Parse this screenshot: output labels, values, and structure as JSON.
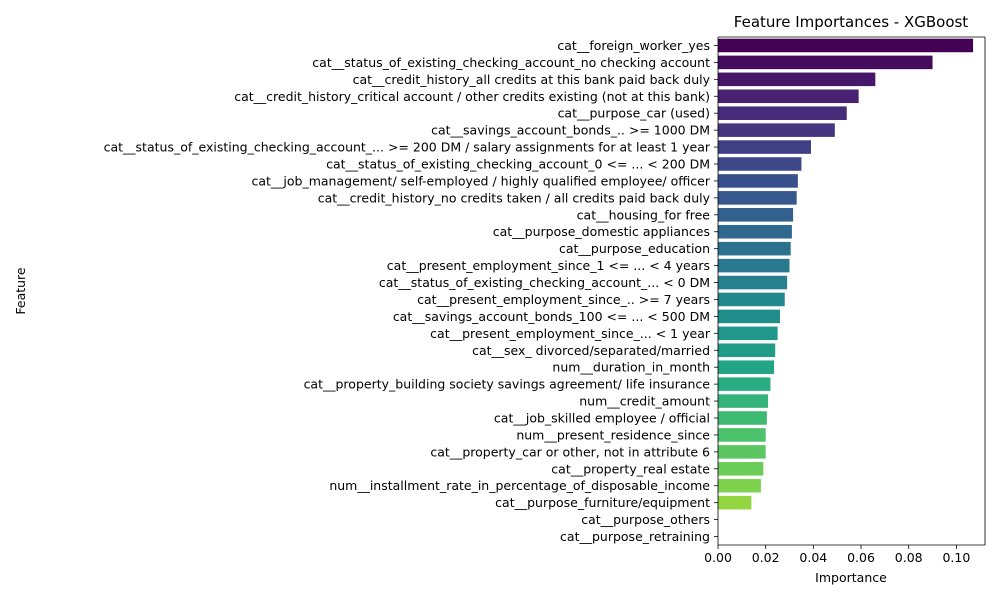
{
  "chart_data": {
    "type": "bar",
    "orientation": "horizontal",
    "title": "Feature Importances - XGBoost",
    "xlabel": "Importance",
    "ylabel": "Feature",
    "xlim": [
      0,
      0.112
    ],
    "xticks": [
      "0.00",
      "0.02",
      "0.04",
      "0.06",
      "0.08",
      "0.10"
    ],
    "grid": false,
    "palette": "viridis",
    "categories": [
      "cat__foreign_worker_yes",
      "cat__status_of_existing_checking_account_no checking account",
      "cat__credit_history_all credits at this bank paid back duly",
      "cat__credit_history_critical account / other credits existing (not at this bank)",
      "cat__purpose_car (used)",
      "cat__savings_account_bonds_.. >= 1000 DM",
      "cat__status_of_existing_checking_account_... >= 200 DM / salary assignments for at least 1 year",
      "cat__status_of_existing_checking_account_0 <= ... < 200 DM",
      "cat__job_management/ self-employed / highly qualified employee/ officer",
      "cat__credit_history_no credits taken / all credits paid back duly",
      "cat__housing_for free",
      "cat__purpose_domestic appliances",
      "cat__purpose_education",
      "cat__present_employment_since_1 <= ... < 4 years",
      "cat__status_of_existing_checking_account_... < 0 DM",
      "cat__present_employment_since_.. >= 7 years",
      "cat__savings_account_bonds_100 <= ... < 500 DM",
      "cat__present_employment_since_... < 1 year",
      "cat__sex_ divorced/separated/married",
      "num__duration_in_month",
      "cat__property_building society savings agreement/ life insurance",
      "num__credit_amount",
      "cat__job_skilled employee / official",
      "num__present_residence_since",
      "cat__property_car or other, not in attribute 6",
      "cat__property_real estate",
      "num__installment_rate_in_percentage_of_disposable_income",
      "cat__purpose_furniture/equipment",
      "cat__purpose_others",
      "cat__purpose_retraining"
    ],
    "values": [
      0.107,
      0.09,
      0.066,
      0.059,
      0.054,
      0.049,
      0.039,
      0.035,
      0.0335,
      0.033,
      0.0315,
      0.031,
      0.0305,
      0.03,
      0.029,
      0.028,
      0.026,
      0.025,
      0.024,
      0.0235,
      0.022,
      0.021,
      0.0205,
      0.02,
      0.02,
      0.019,
      0.018,
      0.014,
      0.0,
      0.0
    ]
  }
}
